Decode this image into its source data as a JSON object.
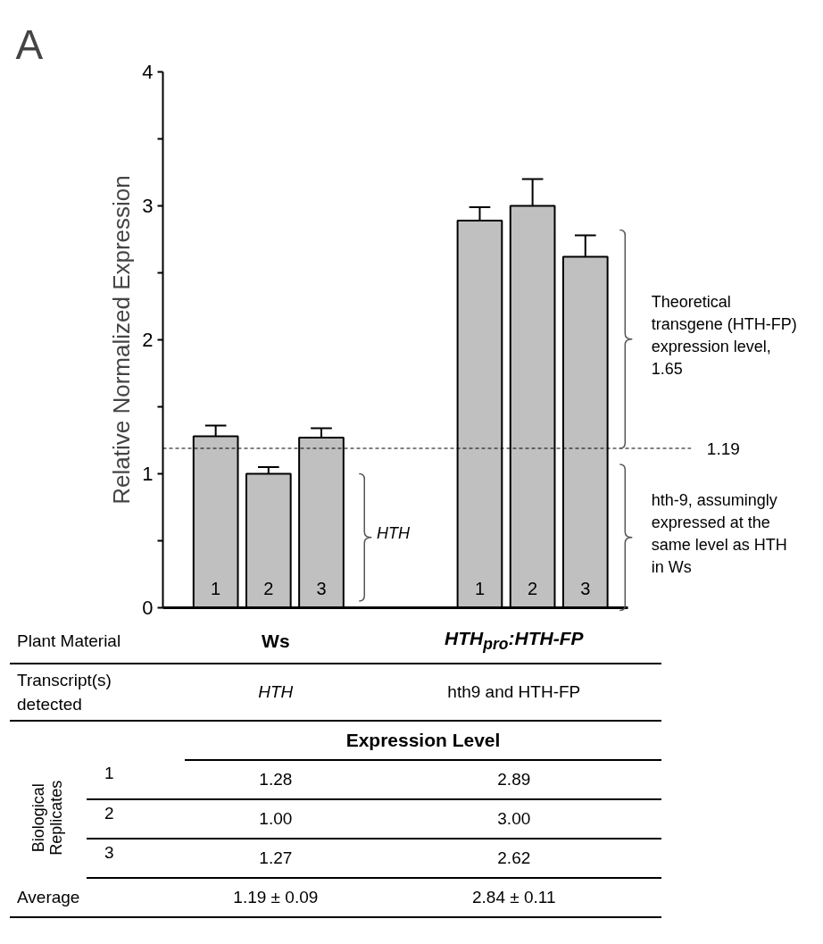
{
  "chart_data": {
    "type": "bar",
    "title": "A",
    "ylabel": "Relative Normalized Expression",
    "categories": [
      "1",
      "2",
      "3",
      null,
      null,
      "1",
      "2",
      "3"
    ],
    "values": [
      1.28,
      1.0,
      1.27,
      null,
      null,
      2.89,
      3.0,
      2.62
    ],
    "errors": [
      0.08,
      0.05,
      0.07,
      null,
      null,
      0.1,
      0.2,
      0.16
    ],
    "color": "#c0c0c0",
    "ylim": [
      0,
      4
    ],
    "yticks": [
      0,
      {
        "value": 0.5,
        "label": null
      },
      1,
      {
        "value": 1.5,
        "label": null
      },
      2,
      {
        "value": 2.5,
        "label": null
      },
      3,
      {
        "value": 3.5,
        "label": null
      },
      4
    ],
    "tick_labels": "y",
    "grid": false,
    "ref_lines": [
      {
        "axis": "y",
        "value": 1.19,
        "label": "1.19",
        "line_style": "dashed",
        "color": "#000000"
      }
    ],
    "annotations": [
      "HTH",
      "Theoretical transgene (HTH-FP) expression level, 1.65",
      "hth-9, assumingly expressed at the same level as HTH in Ws",
      "Plant Material",
      "Ws",
      "HTH$_{pro}$:HTH-FP",
      "Transcript(s) detected",
      "HTH",
      "hth9 and HTH-FP",
      "Expression Level",
      "Biological Replicates",
      "1",
      "1.28",
      "2.89",
      "2",
      "1.00",
      "3.00",
      "3",
      "1.27",
      "2.62",
      "Average",
      "1.19 ± 0.09",
      "2.84 ± 0.11"
    ]
  }
}
